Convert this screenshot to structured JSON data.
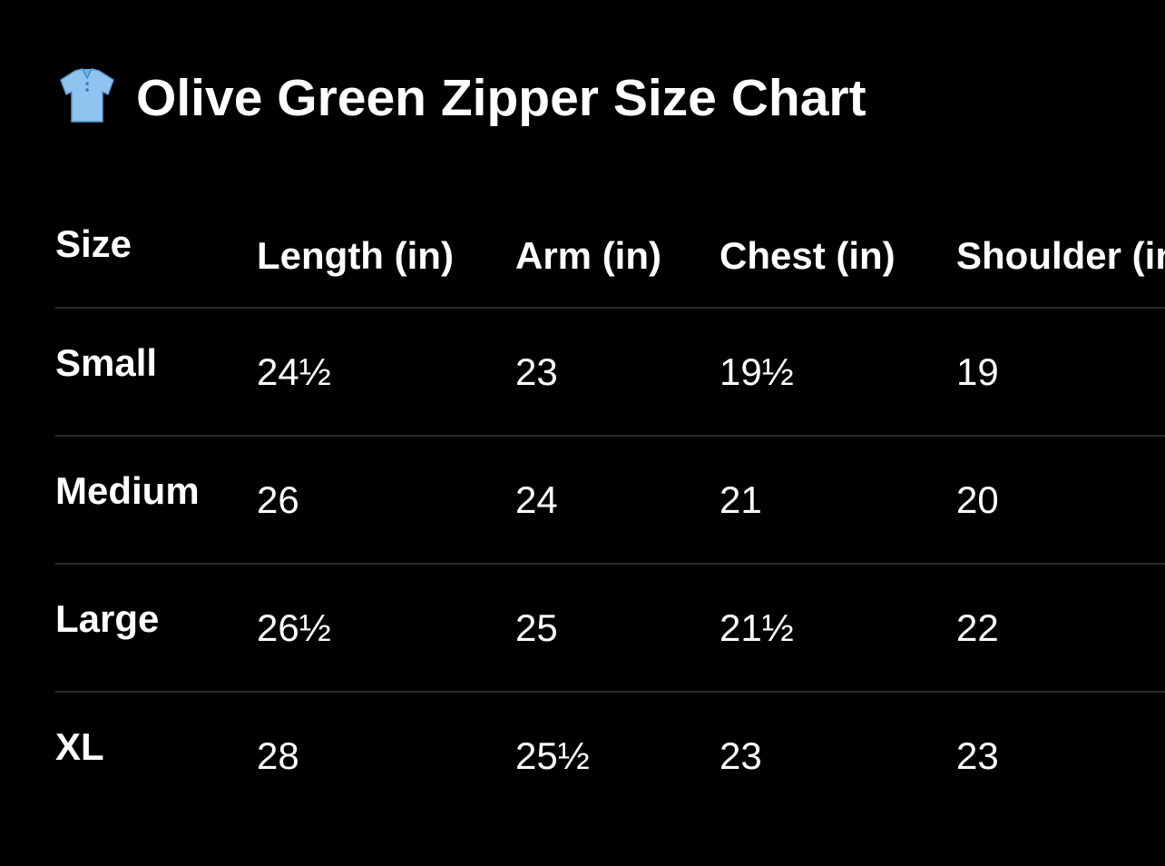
{
  "header": {
    "title": "Olive Green Zipper Size Chart"
  },
  "table": {
    "columns": [
      "Size",
      "Length (in)",
      "Arm (in)",
      "Chest (in)",
      "Shoulder (in)"
    ],
    "rows": [
      [
        "Small",
        "24½",
        "23",
        "19½",
        "19"
      ],
      [
        "Medium",
        "26",
        "24",
        "21",
        "20"
      ],
      [
        "Large",
        "26½",
        "25",
        "21½",
        "22"
      ],
      [
        "XL",
        "28",
        "25½",
        "23",
        "23"
      ]
    ]
  }
}
